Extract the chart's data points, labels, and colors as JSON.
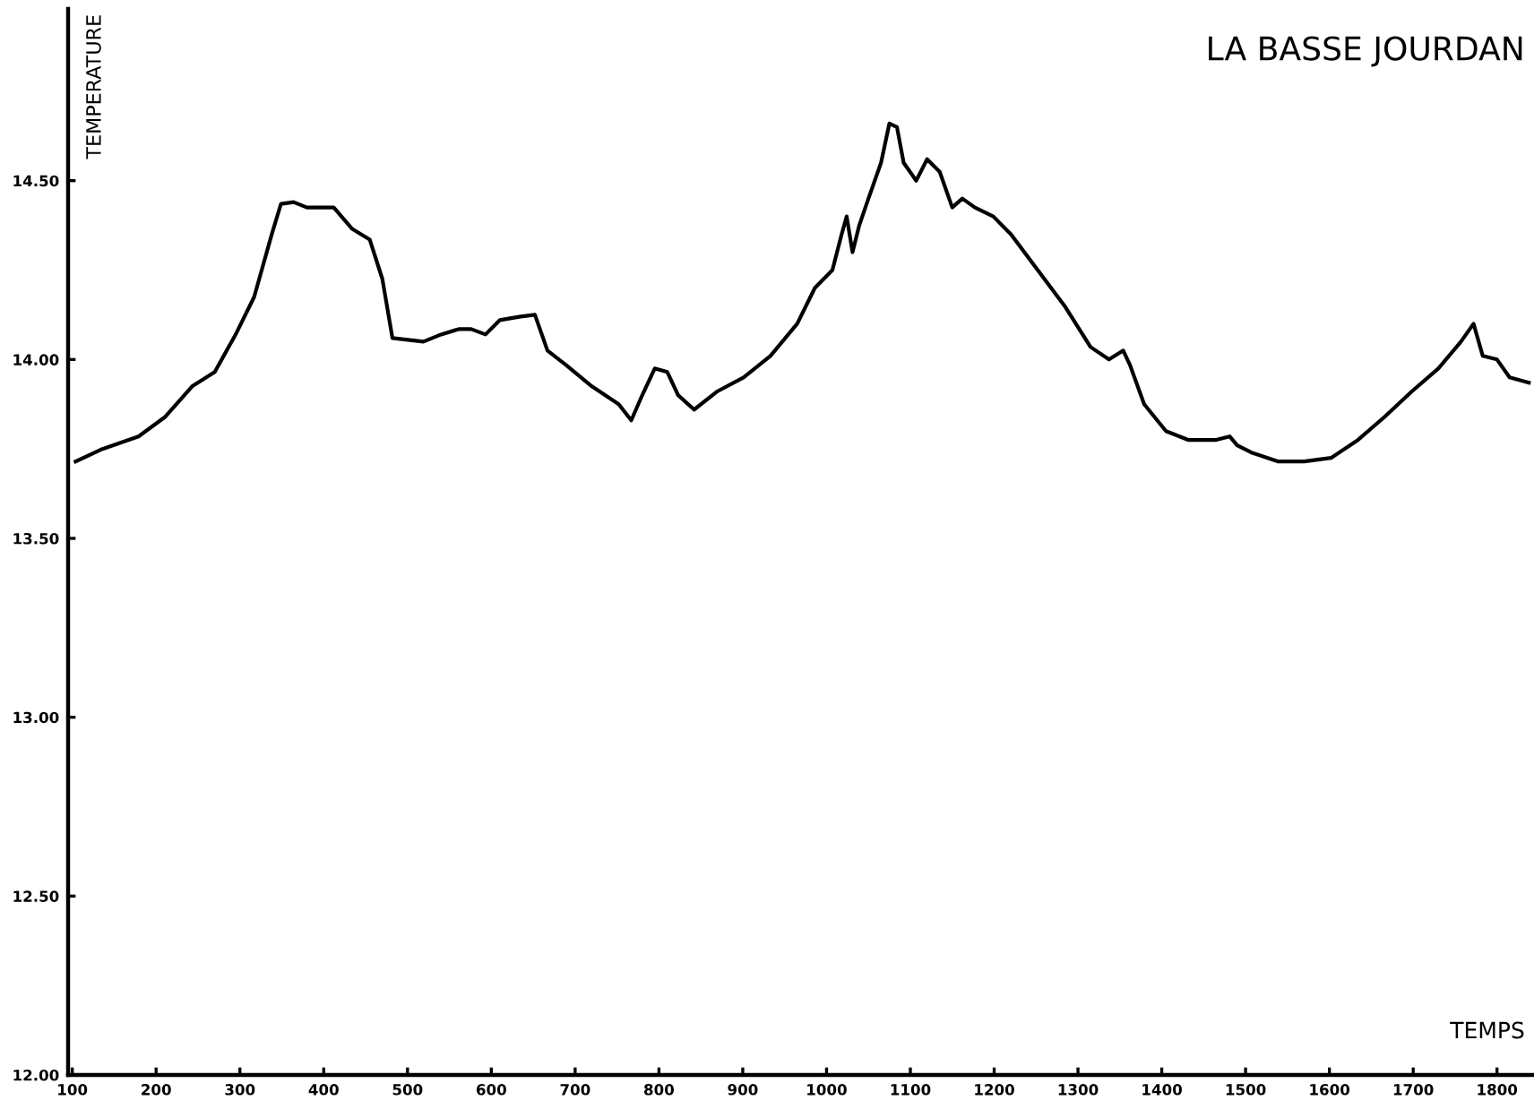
{
  "chart_data": {
    "type": "line",
    "title": "LA BASSE JOURDAN",
    "xlabel": "TEMPS",
    "ylabel": "TEMPERATURE",
    "xlim": [
      95,
      1842
    ],
    "ylim": [
      12.0,
      14.98
    ],
    "xticks": [
      100,
      200,
      300,
      400,
      500,
      600,
      700,
      800,
      900,
      1000,
      1100,
      1200,
      1300,
      1400,
      1500,
      1600,
      1700,
      1800
    ],
    "yticks": [
      {
        "value": 12.0,
        "label": "12.00"
      },
      {
        "value": 12.5,
        "label": "12.50"
      },
      {
        "value": 13.0,
        "label": "13.00"
      },
      {
        "value": 13.5,
        "label": "13.50"
      },
      {
        "value": 14.0,
        "label": "14.00"
      },
      {
        "value": 14.5,
        "label": "14.50"
      }
    ],
    "grid": false,
    "legend": false,
    "marker": "none",
    "line_style": "solid",
    "series": [
      {
        "color": "#000000",
        "x": [
          104,
          136,
          179,
          211,
          243,
          270,
          296,
          317,
          338,
          349,
          364,
          380,
          412,
          434,
          455,
          470,
          482,
          519,
          540,
          561,
          576,
          593,
          610,
          635,
          652,
          667,
          689,
          720,
          752,
          767,
          780,
          795,
          810,
          823,
          842,
          869,
          901,
          933,
          965,
          986,
          1007,
          1018,
          1024,
          1031,
          1039,
          1050,
          1065,
          1075,
          1084,
          1092,
          1107,
          1120,
          1135,
          1150,
          1162,
          1177,
          1199,
          1220,
          1252,
          1284,
          1315,
          1337,
          1354,
          1362,
          1379,
          1405,
          1432,
          1464,
          1481,
          1490,
          1507,
          1539,
          1570,
          1602,
          1634,
          1666,
          1698,
          1730,
          1757,
          1772,
          1783,
          1800,
          1815,
          1838
        ],
        "values": [
          13.715,
          13.75,
          13.785,
          13.84,
          13.925,
          13.965,
          14.075,
          14.175,
          14.35,
          14.435,
          14.44,
          14.425,
          14.425,
          14.365,
          14.335,
          14.225,
          14.06,
          14.05,
          14.07,
          14.085,
          14.085,
          14.07,
          14.11,
          14.12,
          14.125,
          14.025,
          13.985,
          13.925,
          13.875,
          13.83,
          13.9,
          13.975,
          13.965,
          13.9,
          13.86,
          13.91,
          13.95,
          14.01,
          14.1,
          14.2,
          14.25,
          14.35,
          14.4,
          14.3,
          14.375,
          14.45,
          14.55,
          14.66,
          14.65,
          14.55,
          14.5,
          14.56,
          14.525,
          14.425,
          14.45,
          14.425,
          14.4,
          14.35,
          14.25,
          14.15,
          14.035,
          14.0,
          14.025,
          13.985,
          13.875,
          13.8,
          13.775,
          13.775,
          13.785,
          13.76,
          13.74,
          13.715,
          13.715,
          13.725,
          13.775,
          13.84,
          13.91,
          13.975,
          14.05,
          14.1,
          14.01,
          14.0,
          13.95,
          13.935
        ]
      }
    ]
  }
}
